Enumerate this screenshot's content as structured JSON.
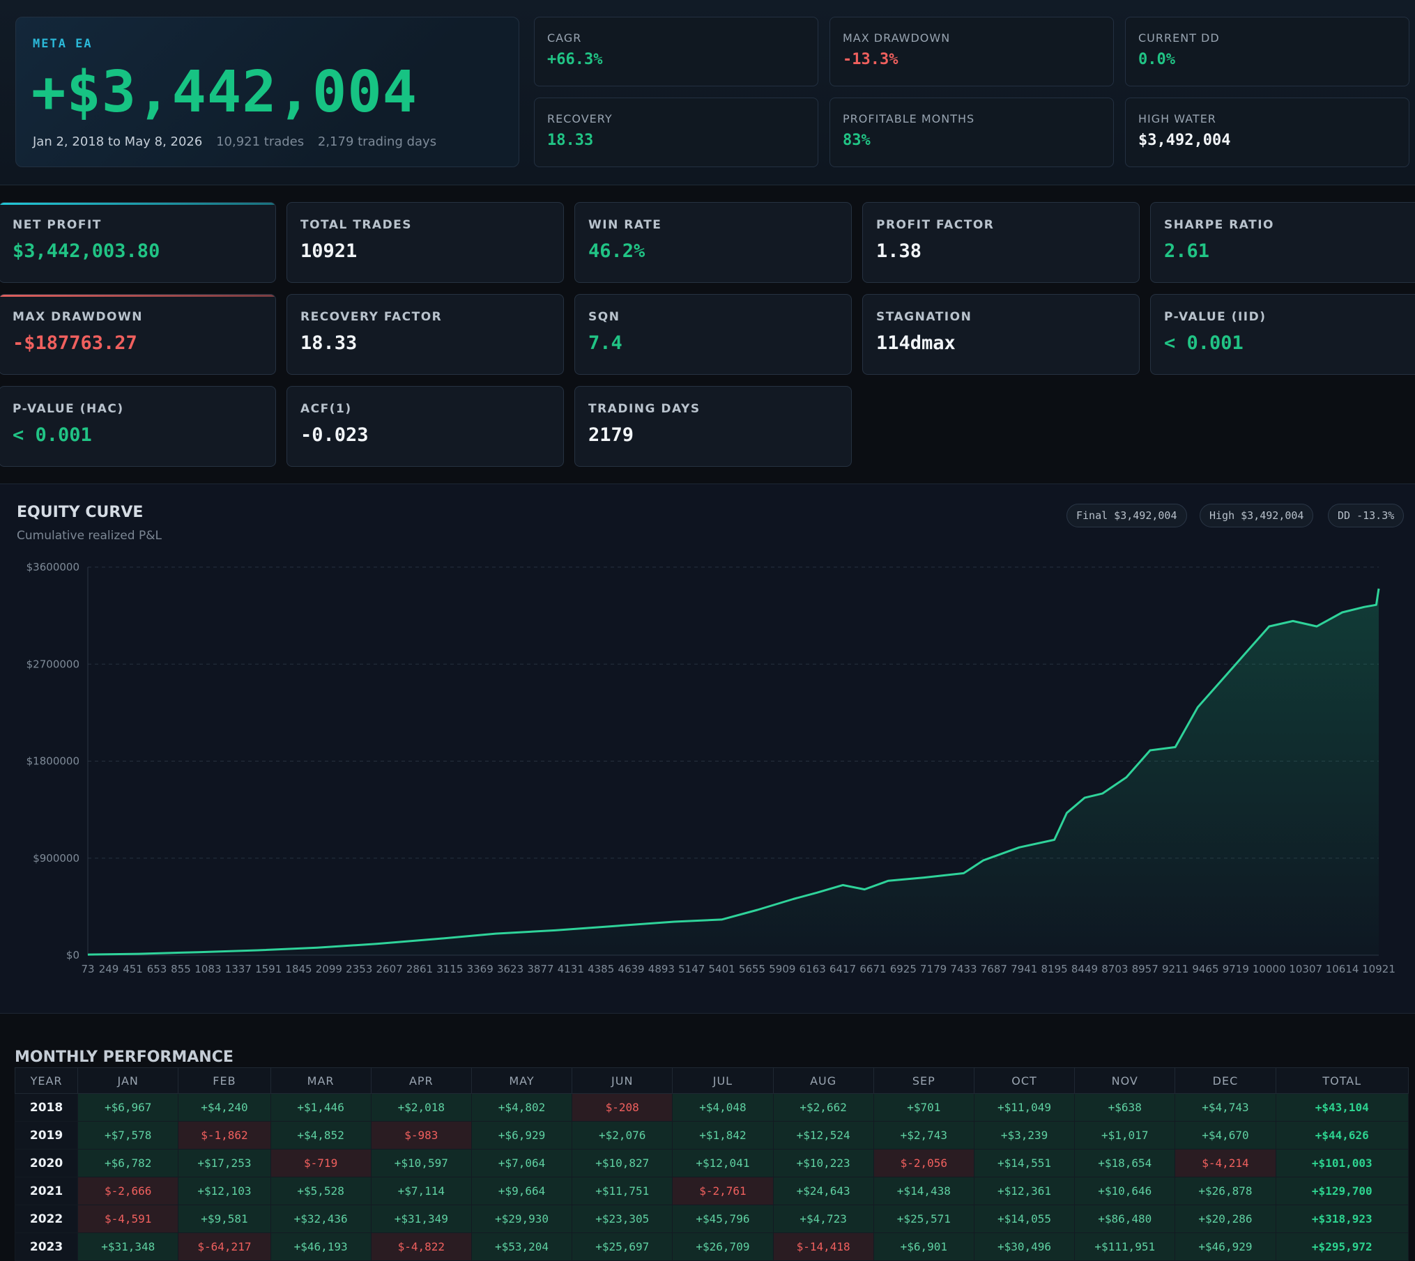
{
  "hero": {
    "label": "META EA",
    "value": "+$3,442,004",
    "period": "Jan 2, 2018 to May 8, 2026",
    "trades": "10,921 trades",
    "days": "2,179 trading days"
  },
  "hero_stats": [
    {
      "label": "CAGR",
      "value": "+66.3%",
      "tone": "green"
    },
    {
      "label": "MAX DRAWDOWN",
      "value": "-13.3%",
      "tone": "red"
    },
    {
      "label": "CURRENT DD",
      "value": "0.0%",
      "tone": "green"
    },
    {
      "label": "RECOVERY",
      "value": "18.33",
      "tone": "green"
    },
    {
      "label": "PROFITABLE MONTHS",
      "value": "83%",
      "tone": "green"
    },
    {
      "label": "HIGH WATER",
      "value": "$3,492,004",
      "tone": "white"
    }
  ],
  "metrics": [
    {
      "label": "NET PROFIT",
      "value": "$3,442,003.80",
      "tone": "green",
      "accent": "#22c8d8"
    },
    {
      "label": "TOTAL TRADES",
      "value": "10921",
      "tone": "white"
    },
    {
      "label": "WIN RATE",
      "value": "46.2%",
      "tone": "green"
    },
    {
      "label": "PROFIT FACTOR",
      "value": "1.38",
      "tone": "white"
    },
    {
      "label": "SHARPE RATIO",
      "value": "2.61",
      "tone": "green"
    },
    {
      "label": "MAX DRAWDOWN",
      "value": "-$187763.27",
      "tone": "red",
      "accent": "#e0605e"
    },
    {
      "label": "RECOVERY FACTOR",
      "value": "18.33",
      "tone": "white"
    },
    {
      "label": "SQN",
      "value": "7.4",
      "tone": "green"
    },
    {
      "label": "STAGNATION",
      "value": "114dmax",
      "tone": "white"
    },
    {
      "label": "P-VALUE (IID)",
      "value": "< 0.001",
      "tone": "green"
    },
    {
      "label": "P-VALUE (HAC)",
      "value": "< 0.001",
      "tone": "green"
    },
    {
      "label": "ACF(1)",
      "value": "-0.023",
      "tone": "white"
    },
    {
      "label": "TRADING DAYS",
      "value": "2179",
      "tone": "white"
    }
  ],
  "equity": {
    "title": "EQUITY CURVE",
    "subtitle": "Cumulative realized P&L",
    "pills": [
      "Final $3,492,004",
      "High $3,492,004",
      "DD -13.3%"
    ]
  },
  "chart_data": {
    "type": "area",
    "title": "EQUITY CURVE",
    "subtitle": "Cumulative realized P&L",
    "xlabel": "",
    "ylabel": "",
    "grid": true,
    "ylim": [
      0,
      3600000
    ],
    "xlim": [
      73,
      10921
    ],
    "y_ticks": [
      "$3600000",
      "$2700000",
      "$1800000",
      "$900000",
      "$0"
    ],
    "y_tick_values": [
      3600000,
      2700000,
      1800000,
      900000,
      0
    ],
    "x_ticks": [
      73,
      249,
      451,
      653,
      855,
      1083,
      1337,
      1591,
      1845,
      2099,
      2353,
      2607,
      2861,
      3115,
      3369,
      3623,
      3877,
      4131,
      4385,
      4639,
      4893,
      5147,
      5401,
      5655,
      5909,
      6163,
      6417,
      6671,
      6925,
      7179,
      7433,
      7687,
      7941,
      8195,
      8449,
      8703,
      8957,
      9211,
      9465,
      9719,
      10000,
      10307,
      10614,
      10921
    ],
    "series": [
      {
        "x": [
          73,
          500,
          1000,
          1500,
          2000,
          2500,
          3000,
          3500,
          4000,
          4500,
          5000,
          5400,
          5700,
          6000,
          6200,
          6417,
          6600,
          6800,
          7100,
          7433,
          7600,
          7900,
          8195,
          8300,
          8449,
          8600,
          8800,
          9000,
          9211,
          9400,
          9600,
          9800,
          10000,
          10200,
          10400,
          10614,
          10800,
          10900,
          10921
        ],
        "values": [
          5000,
          12000,
          28000,
          45000,
          70000,
          105000,
          150000,
          200000,
          230000,
          270000,
          310000,
          330000,
          420000,
          520000,
          580000,
          650000,
          610000,
          690000,
          720000,
          760000,
          880000,
          1000000,
          1070000,
          1320000,
          1460000,
          1500000,
          1650000,
          1900000,
          1930000,
          2300000,
          2550000,
          2800000,
          3050000,
          3100000,
          3050000,
          3180000,
          3230000,
          3250000,
          3400000
        ]
      }
    ]
  },
  "monthly": {
    "title": "MONTHLY PERFORMANCE",
    "headers": [
      "YEAR",
      "JAN",
      "FEB",
      "MAR",
      "APR",
      "MAY",
      "JUN",
      "JUL",
      "AUG",
      "SEP",
      "OCT",
      "NOV",
      "DEC",
      "TOTAL"
    ],
    "rows": [
      [
        "2018",
        "+$6,967",
        "+$4,240",
        "+$1,446",
        "+$2,018",
        "+$4,802",
        "$-208",
        "+$4,048",
        "+$2,662",
        "+$701",
        "+$11,049",
        "+$638",
        "+$4,743",
        "+$43,104"
      ],
      [
        "2019",
        "+$7,578",
        "$-1,862",
        "+$4,852",
        "$-983",
        "+$6,929",
        "+$2,076",
        "+$1,842",
        "+$12,524",
        "+$2,743",
        "+$3,239",
        "+$1,017",
        "+$4,670",
        "+$44,626"
      ],
      [
        "2020",
        "+$6,782",
        "+$17,253",
        "$-719",
        "+$10,597",
        "+$7,064",
        "+$10,827",
        "+$12,041",
        "+$10,223",
        "$-2,056",
        "+$14,551",
        "+$18,654",
        "$-4,214",
        "+$101,003"
      ],
      [
        "2021",
        "$-2,666",
        "+$12,103",
        "+$5,528",
        "+$7,114",
        "+$9,664",
        "+$11,751",
        "$-2,761",
        "+$24,643",
        "+$14,438",
        "+$12,361",
        "+$10,646",
        "+$26,878",
        "+$129,700"
      ],
      [
        "2022",
        "$-4,591",
        "+$9,581",
        "+$32,436",
        "+$31,349",
        "+$29,930",
        "+$23,305",
        "+$45,796",
        "+$4,723",
        "+$25,571",
        "+$14,055",
        "+$86,480",
        "+$20,286",
        "+$318,923"
      ],
      [
        "2023",
        "+$31,348",
        "$-64,217",
        "+$46,193",
        "$-4,822",
        "+$53,204",
        "+$25,697",
        "+$26,709",
        "$-14,418",
        "+$6,901",
        "+$30,496",
        "+$111,951",
        "+$46,929",
        "+$295,972"
      ]
    ]
  }
}
